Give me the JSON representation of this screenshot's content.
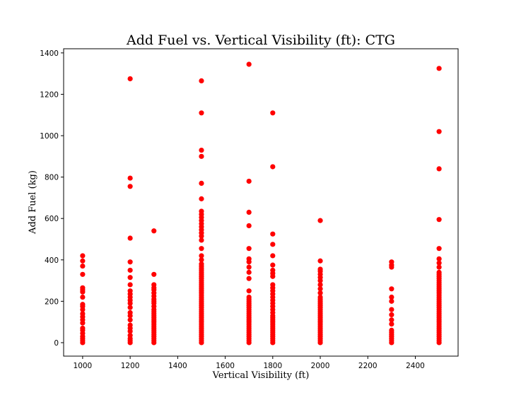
{
  "chart_data": {
    "type": "scatter",
    "title": "Add Fuel vs. Vertical Visibility (ft): CTG",
    "xlabel": "Vertical Visibility (ft)",
    "ylabel": "Add Fuel (kg)",
    "xlim": [
      920,
      2580
    ],
    "ylim": [
      -65,
      1420
    ],
    "xticks": [
      1000,
      1200,
      1400,
      1600,
      1800,
      2000,
      2200,
      2400
    ],
    "yticks": [
      0,
      200,
      400,
      600,
      800,
      1000,
      1200,
      1400
    ],
    "grid": false,
    "point_color": "#ff0000",
    "series": [
      {
        "points": [
          [
            1000,
            0
          ],
          [
            1000,
            10
          ],
          [
            1000,
            20
          ],
          [
            1000,
            30
          ],
          [
            1000,
            45
          ],
          [
            1000,
            60
          ],
          [
            1000,
            70
          ],
          [
            1000,
            95
          ],
          [
            1000,
            110
          ],
          [
            1000,
            125
          ],
          [
            1000,
            140
          ],
          [
            1000,
            160
          ],
          [
            1000,
            175
          ],
          [
            1000,
            185
          ],
          [
            1000,
            220
          ],
          [
            1000,
            245
          ],
          [
            1000,
            255
          ],
          [
            1000,
            265
          ],
          [
            1000,
            330
          ],
          [
            1000,
            370
          ],
          [
            1000,
            395
          ],
          [
            1000,
            420
          ],
          [
            1200,
            0
          ],
          [
            1200,
            10
          ],
          [
            1200,
            20
          ],
          [
            1200,
            35
          ],
          [
            1200,
            55
          ],
          [
            1200,
            70
          ],
          [
            1200,
            85
          ],
          [
            1200,
            110
          ],
          [
            1200,
            130
          ],
          [
            1200,
            145
          ],
          [
            1200,
            170
          ],
          [
            1200,
            190
          ],
          [
            1200,
            205
          ],
          [
            1200,
            220
          ],
          [
            1200,
            235
          ],
          [
            1200,
            250
          ],
          [
            1200,
            280
          ],
          [
            1200,
            315
          ],
          [
            1200,
            350
          ],
          [
            1200,
            390
          ],
          [
            1200,
            505
          ],
          [
            1200,
            755
          ],
          [
            1200,
            795
          ],
          [
            1200,
            1275
          ],
          [
            1300,
            0
          ],
          [
            1300,
            10
          ],
          [
            1300,
            20
          ],
          [
            1300,
            30
          ],
          [
            1300,
            40
          ],
          [
            1300,
            50
          ],
          [
            1300,
            60
          ],
          [
            1300,
            70
          ],
          [
            1300,
            80
          ],
          [
            1300,
            90
          ],
          [
            1300,
            100
          ],
          [
            1300,
            110
          ],
          [
            1300,
            120
          ],
          [
            1300,
            130
          ],
          [
            1300,
            140
          ],
          [
            1300,
            150
          ],
          [
            1300,
            160
          ],
          [
            1300,
            175
          ],
          [
            1300,
            190
          ],
          [
            1300,
            200
          ],
          [
            1300,
            210
          ],
          [
            1300,
            225
          ],
          [
            1300,
            240
          ],
          [
            1300,
            255
          ],
          [
            1300,
            265
          ],
          [
            1300,
            280
          ],
          [
            1300,
            330
          ],
          [
            1300,
            540
          ],
          [
            1500,
            0
          ],
          [
            1500,
            10
          ],
          [
            1500,
            20
          ],
          [
            1500,
            30
          ],
          [
            1500,
            40
          ],
          [
            1500,
            50
          ],
          [
            1500,
            60
          ],
          [
            1500,
            70
          ],
          [
            1500,
            80
          ],
          [
            1500,
            90
          ],
          [
            1500,
            100
          ],
          [
            1500,
            110
          ],
          [
            1500,
            120
          ],
          [
            1500,
            130
          ],
          [
            1500,
            140
          ],
          [
            1500,
            150
          ],
          [
            1500,
            160
          ],
          [
            1500,
            170
          ],
          [
            1500,
            180
          ],
          [
            1500,
            190
          ],
          [
            1500,
            200
          ],
          [
            1500,
            210
          ],
          [
            1500,
            220
          ],
          [
            1500,
            230
          ],
          [
            1500,
            240
          ],
          [
            1500,
            250
          ],
          [
            1500,
            260
          ],
          [
            1500,
            270
          ],
          [
            1500,
            280
          ],
          [
            1500,
            290
          ],
          [
            1500,
            300
          ],
          [
            1500,
            310
          ],
          [
            1500,
            320
          ],
          [
            1500,
            330
          ],
          [
            1500,
            340
          ],
          [
            1500,
            350
          ],
          [
            1500,
            360
          ],
          [
            1500,
            370
          ],
          [
            1500,
            380
          ],
          [
            1500,
            400
          ],
          [
            1500,
            420
          ],
          [
            1500,
            455
          ],
          [
            1500,
            495
          ],
          [
            1500,
            515
          ],
          [
            1500,
            530
          ],
          [
            1500,
            545
          ],
          [
            1500,
            560
          ],
          [
            1500,
            575
          ],
          [
            1500,
            590
          ],
          [
            1500,
            605
          ],
          [
            1500,
            620
          ],
          [
            1500,
            635
          ],
          [
            1500,
            695
          ],
          [
            1500,
            770
          ],
          [
            1500,
            900
          ],
          [
            1500,
            930
          ],
          [
            1500,
            1110
          ],
          [
            1500,
            1265
          ],
          [
            1700,
            0
          ],
          [
            1700,
            10
          ],
          [
            1700,
            20
          ],
          [
            1700,
            30
          ],
          [
            1700,
            40
          ],
          [
            1700,
            50
          ],
          [
            1700,
            60
          ],
          [
            1700,
            70
          ],
          [
            1700,
            80
          ],
          [
            1700,
            90
          ],
          [
            1700,
            100
          ],
          [
            1700,
            110
          ],
          [
            1700,
            120
          ],
          [
            1700,
            130
          ],
          [
            1700,
            140
          ],
          [
            1700,
            150
          ],
          [
            1700,
            160
          ],
          [
            1700,
            170
          ],
          [
            1700,
            180
          ],
          [
            1700,
            190
          ],
          [
            1700,
            200
          ],
          [
            1700,
            210
          ],
          [
            1700,
            220
          ],
          [
            1700,
            250
          ],
          [
            1700,
            310
          ],
          [
            1700,
            340
          ],
          [
            1700,
            365
          ],
          [
            1700,
            390
          ],
          [
            1700,
            405
          ],
          [
            1700,
            455
          ],
          [
            1700,
            565
          ],
          [
            1700,
            630
          ],
          [
            1700,
            780
          ],
          [
            1700,
            1345
          ],
          [
            1800,
            0
          ],
          [
            1800,
            10
          ],
          [
            1800,
            20
          ],
          [
            1800,
            30
          ],
          [
            1800,
            40
          ],
          [
            1800,
            50
          ],
          [
            1800,
            60
          ],
          [
            1800,
            70
          ],
          [
            1800,
            80
          ],
          [
            1800,
            90
          ],
          [
            1800,
            100
          ],
          [
            1800,
            110
          ],
          [
            1800,
            120
          ],
          [
            1800,
            130
          ],
          [
            1800,
            145
          ],
          [
            1800,
            160
          ],
          [
            1800,
            175
          ],
          [
            1800,
            190
          ],
          [
            1800,
            205
          ],
          [
            1800,
            220
          ],
          [
            1800,
            235
          ],
          [
            1800,
            250
          ],
          [
            1800,
            265
          ],
          [
            1800,
            280
          ],
          [
            1800,
            320
          ],
          [
            1800,
            335
          ],
          [
            1800,
            350
          ],
          [
            1800,
            375
          ],
          [
            1800,
            420
          ],
          [
            1800,
            475
          ],
          [
            1800,
            525
          ],
          [
            1800,
            850
          ],
          [
            1800,
            1110
          ],
          [
            2000,
            0
          ],
          [
            2000,
            10
          ],
          [
            2000,
            20
          ],
          [
            2000,
            30
          ],
          [
            2000,
            40
          ],
          [
            2000,
            50
          ],
          [
            2000,
            60
          ],
          [
            2000,
            70
          ],
          [
            2000,
            80
          ],
          [
            2000,
            90
          ],
          [
            2000,
            100
          ],
          [
            2000,
            110
          ],
          [
            2000,
            120
          ],
          [
            2000,
            130
          ],
          [
            2000,
            140
          ],
          [
            2000,
            150
          ],
          [
            2000,
            160
          ],
          [
            2000,
            170
          ],
          [
            2000,
            180
          ],
          [
            2000,
            190
          ],
          [
            2000,
            200
          ],
          [
            2000,
            210
          ],
          [
            2000,
            220
          ],
          [
            2000,
            240
          ],
          [
            2000,
            260
          ],
          [
            2000,
            280
          ],
          [
            2000,
            300
          ],
          [
            2000,
            315
          ],
          [
            2000,
            330
          ],
          [
            2000,
            345
          ],
          [
            2000,
            355
          ],
          [
            2000,
            395
          ],
          [
            2000,
            590
          ],
          [
            2300,
            0
          ],
          [
            2300,
            10
          ],
          [
            2300,
            20
          ],
          [
            2300,
            30
          ],
          [
            2300,
            40
          ],
          [
            2300,
            50
          ],
          [
            2300,
            60
          ],
          [
            2300,
            90
          ],
          [
            2300,
            110
          ],
          [
            2300,
            135
          ],
          [
            2300,
            160
          ],
          [
            2300,
            200
          ],
          [
            2300,
            220
          ],
          [
            2300,
            260
          ],
          [
            2300,
            365
          ],
          [
            2300,
            375
          ],
          [
            2300,
            390
          ],
          [
            2500,
            0
          ],
          [
            2500,
            10
          ],
          [
            2500,
            20
          ],
          [
            2500,
            30
          ],
          [
            2500,
            40
          ],
          [
            2500,
            50
          ],
          [
            2500,
            60
          ],
          [
            2500,
            70
          ],
          [
            2500,
            80
          ],
          [
            2500,
            90
          ],
          [
            2500,
            100
          ],
          [
            2500,
            110
          ],
          [
            2500,
            120
          ],
          [
            2500,
            130
          ],
          [
            2500,
            140
          ],
          [
            2500,
            150
          ],
          [
            2500,
            160
          ],
          [
            2500,
            170
          ],
          [
            2500,
            180
          ],
          [
            2500,
            190
          ],
          [
            2500,
            200
          ],
          [
            2500,
            210
          ],
          [
            2500,
            220
          ],
          [
            2500,
            230
          ],
          [
            2500,
            240
          ],
          [
            2500,
            250
          ],
          [
            2500,
            260
          ],
          [
            2500,
            270
          ],
          [
            2500,
            280
          ],
          [
            2500,
            290
          ],
          [
            2500,
            300
          ],
          [
            2500,
            310
          ],
          [
            2500,
            320
          ],
          [
            2500,
            330
          ],
          [
            2500,
            340
          ],
          [
            2500,
            365
          ],
          [
            2500,
            385
          ],
          [
            2500,
            405
          ],
          [
            2500,
            455
          ],
          [
            2500,
            595
          ],
          [
            2500,
            840
          ],
          [
            2500,
            1020
          ],
          [
            2500,
            1325
          ]
        ]
      }
    ]
  }
}
